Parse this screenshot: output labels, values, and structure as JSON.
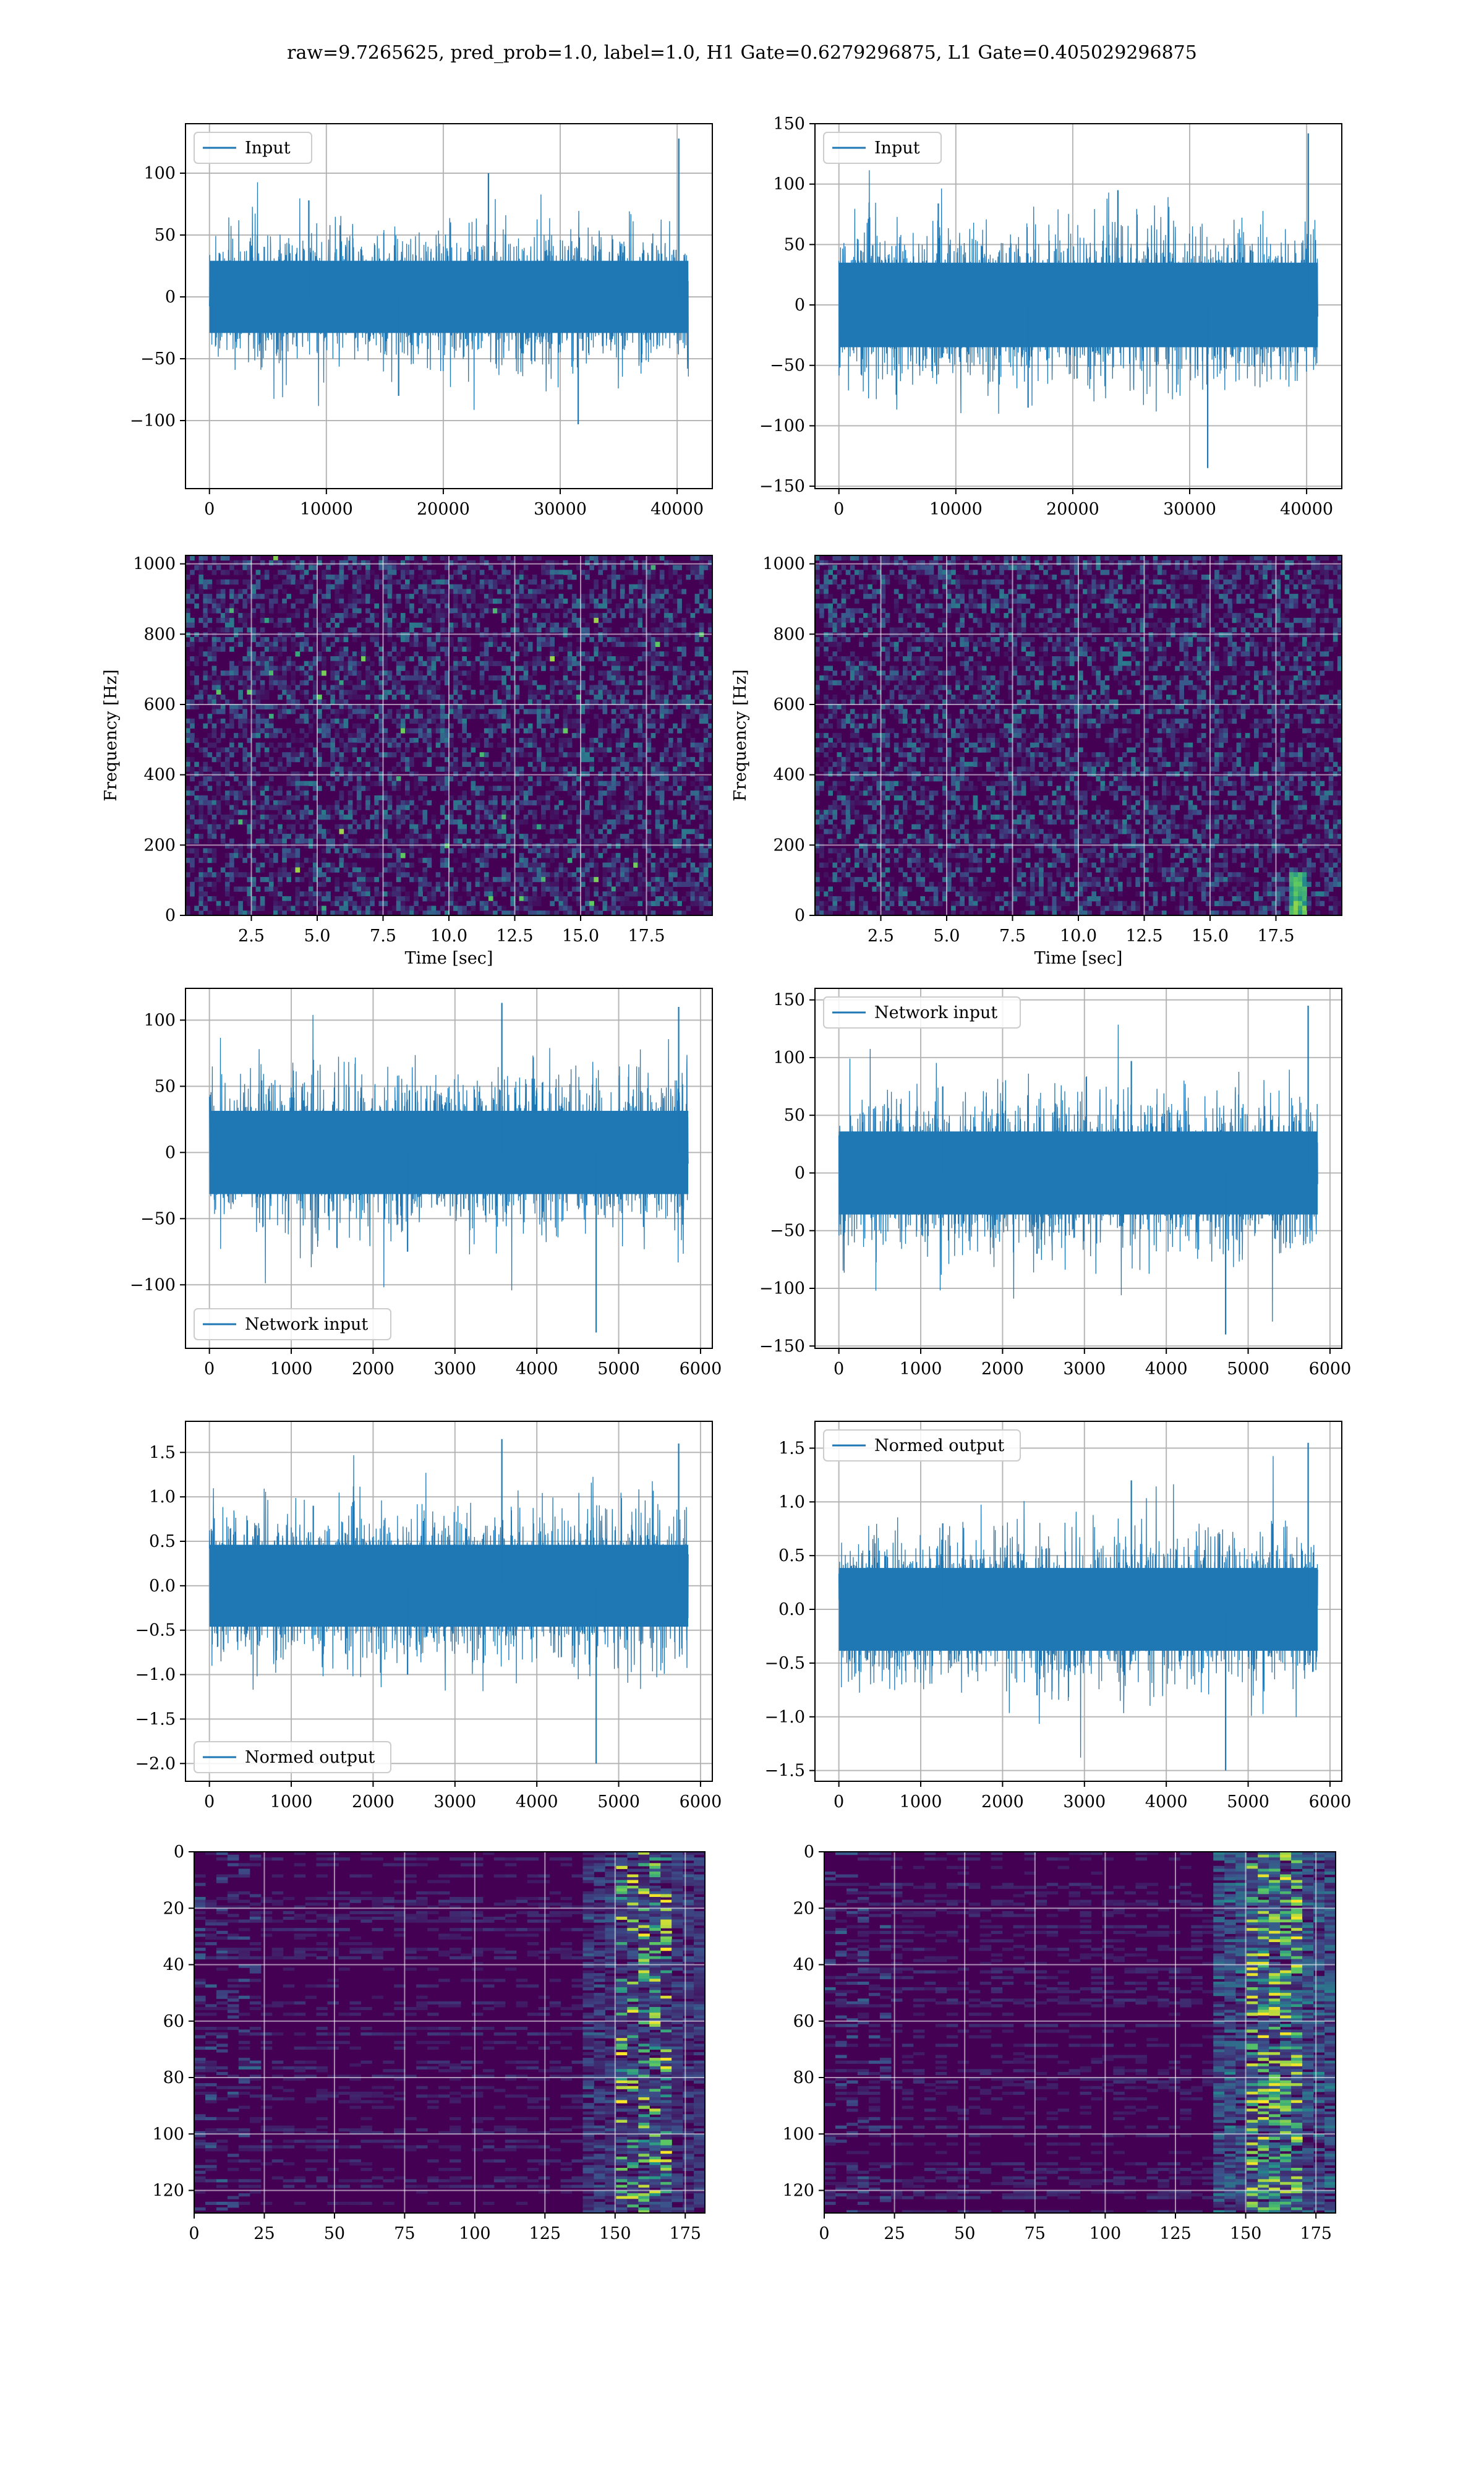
{
  "title": "raw=9.7265625, pred_prob=1.0, label=1.0, H1 Gate=0.6279296875, L1 Gate=0.405029296875",
  "colors": {
    "series": "#1f77b4",
    "grid": "#b0b0b0",
    "viridis_dark": "#440154",
    "viridis_mid": "#21918c",
    "viridis_bright": "#fde725"
  },
  "chart_data": [
    {
      "type": "line",
      "panel": "row1-left",
      "series": [
        {
          "name": "Input",
          "values": [
            0,
            78,
            -80,
            100,
            -103,
            128
          ]
        }
      ],
      "x": [
        0,
        8000,
        16000,
        24000,
        32000,
        40960
      ],
      "xlim": [
        -2048,
        43008
      ],
      "ylim": [
        -155,
        140
      ],
      "xticks": [
        "0",
        "10000",
        "20000",
        "30000",
        "40000"
      ],
      "yticks": [
        "−100",
        "−50",
        "0",
        "50",
        "100"
      ],
      "legend": "upper-left",
      "grid": true
    },
    {
      "type": "line",
      "panel": "row1-right",
      "series": [
        {
          "name": "Input",
          "values": [
            0,
            84,
            -85,
            95,
            -135,
            142
          ]
        }
      ],
      "x": [
        0,
        8000,
        16000,
        24000,
        32000,
        40960
      ],
      "xlim": [
        -2048,
        43008
      ],
      "ylim": [
        -152,
        150
      ],
      "xticks": [
        "0",
        "10000",
        "20000",
        "30000",
        "40000"
      ],
      "yticks": [
        "−150",
        "−100",
        "−50",
        "0",
        "50",
        "100",
        "150"
      ],
      "legend": "upper-left",
      "grid": true
    },
    {
      "type": "heatmap",
      "panel": "row2-left",
      "xlabel": "Time [sec]",
      "ylabel": "Frequency [Hz]",
      "xlim": [
        0,
        20
      ],
      "ylim": [
        0,
        1024
      ],
      "xticks": [
        "2.5",
        "5.0",
        "7.5",
        "10.0",
        "12.5",
        "15.0",
        "17.5"
      ],
      "yticks": [
        "0",
        "200",
        "400",
        "600",
        "800",
        "1000"
      ],
      "colormap": "viridis",
      "grid": true
    },
    {
      "type": "heatmap",
      "panel": "row2-right",
      "xlabel": "Time [sec]",
      "ylabel": "Frequency [Hz]",
      "xlim": [
        0,
        20
      ],
      "ylim": [
        0,
        1024
      ],
      "xticks": [
        "2.5",
        "5.0",
        "7.5",
        "10.0",
        "12.5",
        "15.0",
        "17.5"
      ],
      "yticks": [
        "0",
        "200",
        "400",
        "600",
        "800",
        "1000"
      ],
      "colormap": "viridis",
      "grid": true
    },
    {
      "type": "line",
      "panel": "row3-left",
      "series": [
        {
          "name": "Network input",
          "values": [
            0,
            70,
            -75,
            113,
            -136,
            110
          ]
        }
      ],
      "x": [
        0,
        1200,
        2400,
        3600,
        4800,
        5850
      ],
      "xlim": [
        -292,
        6144
      ],
      "ylim": [
        -148,
        124
      ],
      "xticks": [
        "0",
        "1000",
        "2000",
        "3000",
        "4000",
        "5000",
        "6000"
      ],
      "yticks": [
        "−100",
        "−50",
        "0",
        "50",
        "100"
      ],
      "legend": "lower-left",
      "grid": true
    },
    {
      "type": "line",
      "panel": "row3-right",
      "series": [
        {
          "name": "Network input",
          "values": [
            0,
            75,
            -70,
            97,
            -140,
            145
          ]
        }
      ],
      "x": [
        0,
        1200,
        2400,
        3600,
        4800,
        5850
      ],
      "xlim": [
        -292,
        6144
      ],
      "ylim": [
        -152,
        160
      ],
      "xticks": [
        "0",
        "1000",
        "2000",
        "3000",
        "4000",
        "5000",
        "6000"
      ],
      "yticks": [
        "−150",
        "−100",
        "−50",
        "0",
        "50",
        "100",
        "150"
      ],
      "legend": "upper-left",
      "grid": true
    },
    {
      "type": "line",
      "panel": "row4-left",
      "series": [
        {
          "name": "Normed output",
          "values": [
            0,
            0.9,
            -1.0,
            1.65,
            -2.0,
            1.6
          ]
        }
      ],
      "x": [
        0,
        1200,
        2400,
        3600,
        4800,
        5850
      ],
      "xlim": [
        -292,
        6144
      ],
      "ylim": [
        -2.2,
        1.85
      ],
      "xticks": [
        "0",
        "1000",
        "2000",
        "3000",
        "4000",
        "5000",
        "6000"
      ],
      "yticks": [
        "−2.0",
        "−1.5",
        "−1.0",
        "−0.5",
        "0.0",
        "0.5",
        "1.0",
        "1.5"
      ],
      "legend": "lower-left",
      "grid": true
    },
    {
      "type": "line",
      "panel": "row4-right",
      "series": [
        {
          "name": "Normed output",
          "values": [
            0,
            0.8,
            -0.8,
            1.2,
            -1.5,
            1.55
          ]
        }
      ],
      "x": [
        0,
        1200,
        2400,
        3600,
        4800,
        5850
      ],
      "xlim": [
        -292,
        6144
      ],
      "ylim": [
        -1.6,
        1.75
      ],
      "xticks": [
        "0",
        "1000",
        "2000",
        "3000",
        "4000",
        "5000",
        "6000"
      ],
      "yticks": [
        "−1.5",
        "−1.0",
        "−0.5",
        "0.0",
        "0.5",
        "1.0",
        "1.5"
      ],
      "legend": "upper-left",
      "grid": true
    },
    {
      "type": "heatmap",
      "panel": "row5-left",
      "xlim": [
        0,
        182
      ],
      "ylim": [
        128,
        0
      ],
      "xticks": [
        "0",
        "25",
        "50",
        "75",
        "100",
        "125",
        "150",
        "175"
      ],
      "yticks": [
        "0",
        "20",
        "40",
        "60",
        "80",
        "100",
        "120"
      ],
      "colormap": "viridis",
      "grid": true
    },
    {
      "type": "heatmap",
      "panel": "row5-right",
      "xlim": [
        0,
        182
      ],
      "ylim": [
        128,
        0
      ],
      "xticks": [
        "0",
        "25",
        "50",
        "75",
        "100",
        "125",
        "150",
        "175"
      ],
      "yticks": [
        "0",
        "20",
        "40",
        "60",
        "80",
        "100",
        "120"
      ],
      "colormap": "viridis",
      "grid": true
    }
  ]
}
